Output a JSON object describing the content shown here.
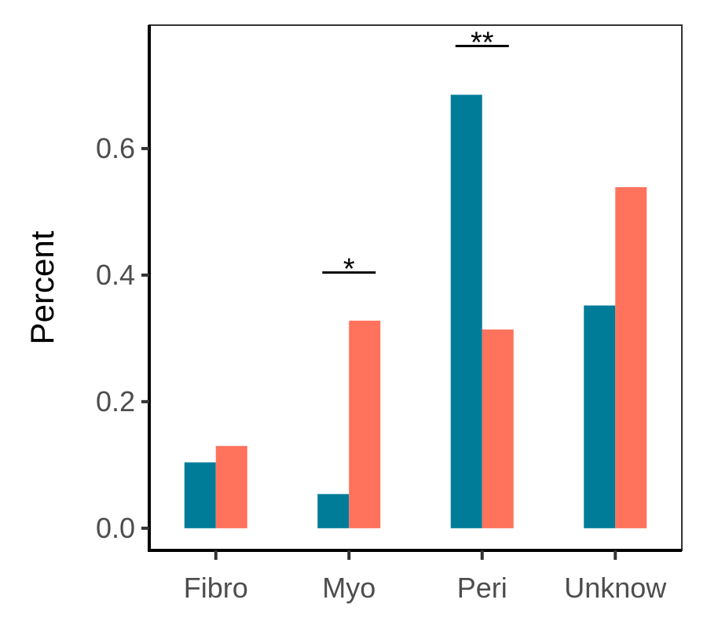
{
  "chart_data": {
    "type": "bar",
    "title": "",
    "xlabel": "",
    "ylabel": "Percent",
    "categories": [
      "Fibro",
      "Myo",
      "Peri",
      "Unknow"
    ],
    "series": [
      {
        "color": "#007c99",
        "values": [
          0.104,
          0.054,
          0.685,
          0.352
        ]
      },
      {
        "color": "#ff725c",
        "values": [
          0.13,
          0.328,
          0.314,
          0.539
        ]
      }
    ],
    "ylim": [
      -0.035,
      0.795
    ],
    "yticks": [
      0.0,
      0.2,
      0.4,
      0.6
    ],
    "ytick_labels": [
      "0.0",
      "0.2",
      "0.4",
      "0.6"
    ],
    "grid": false,
    "legend": "none",
    "annotations": [
      {
        "category": "Myo",
        "text": "*",
        "y": 0.404
      },
      {
        "category": "Peri",
        "text": "**",
        "y": 0.762
      }
    ]
  }
}
